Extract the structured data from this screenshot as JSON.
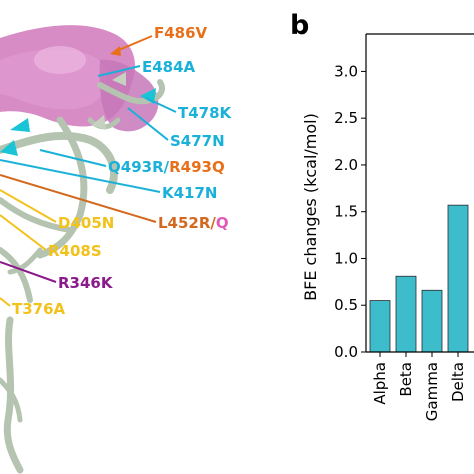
{
  "panel_b_letter": "b",
  "structure_labels": [
    {
      "parts": [
        {
          "text": "F486V",
          "color": "#e8701a"
        }
      ]
    },
    {
      "parts": [
        {
          "text": "E484A",
          "color": "#1ab1d9"
        }
      ]
    },
    {
      "parts": [
        {
          "text": "T478K",
          "color": "#1ab1d9"
        }
      ]
    },
    {
      "parts": [
        {
          "text": "S477N",
          "color": "#1ab1d9"
        }
      ]
    },
    {
      "parts": [
        {
          "text": "Q493R",
          "color": "#1ab1d9"
        },
        {
          "text": "/",
          "color": "#1ab1d9"
        },
        {
          "text": "R493Q",
          "color": "#e8701a"
        }
      ]
    },
    {
      "parts": [
        {
          "text": "K417N",
          "color": "#1ab1d9"
        }
      ]
    },
    {
      "parts": [
        {
          "text": "L452R",
          "color": "#d2691e"
        },
        {
          "text": "/",
          "color": "#d2691e"
        },
        {
          "text": "Q",
          "color": "#e05ab5"
        }
      ]
    },
    {
      "parts": [
        {
          "text": "D405N",
          "color": "#f2c21b"
        }
      ]
    },
    {
      "parts": [
        {
          "text": "R408S",
          "color": "#f2c21b"
        }
      ]
    },
    {
      "parts": [
        {
          "text": "R346K",
          "color": "#8b1a8b"
        }
      ]
    },
    {
      "parts": [
        {
          "text": "T376A",
          "color": "#f2c21b"
        }
      ]
    }
  ],
  "chart_data": {
    "type": "bar",
    "categories": [
      "Alpha",
      "Beta",
      "Gamma",
      "Delta"
    ],
    "values": [
      0.55,
      0.81,
      0.66,
      1.57
    ],
    "ylabel": "BFE changes (kcal/mol)",
    "ylim": [
      0,
      3.4
    ],
    "yticks": [
      0.0,
      0.5,
      1.0,
      1.5,
      2.0,
      2.5,
      3.0
    ],
    "ytick_labels": [
      "0.0",
      "0.5",
      "1.0",
      "1.5",
      "2.0",
      "2.5",
      "3.0"
    ],
    "bar_color": "#3dbccc",
    "grid": false
  }
}
